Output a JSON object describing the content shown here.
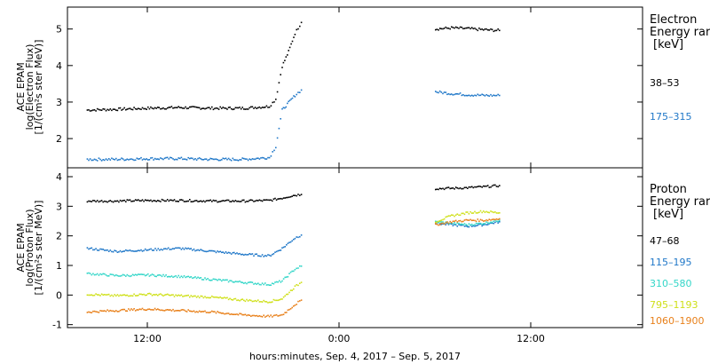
{
  "chart_data": [
    {
      "type": "scatter",
      "instrument": "ACE EPAM",
      "ylabel": "log(Electron Flux)",
      "yunits": "[1/(cm²s ster MeV)]",
      "ylim": [
        1.2,
        5.6
      ],
      "yticks": [
        2,
        3,
        4,
        5
      ],
      "legend_title": [
        "Electron",
        "Energy rar",
        "[keV]"
      ],
      "series": [
        {
          "name": "38–53",
          "color": "#000000",
          "segments": [
            {
              "x": [
                8.2,
                10,
                12,
                14,
                16,
                18,
                19.6,
                20.0,
                20.4,
                20.8,
                21.2,
                21.6
              ],
              "y": [
                2.8,
                2.82,
                2.85,
                2.87,
                2.85,
                2.85,
                2.9,
                3.1,
                4.0,
                4.4,
                4.9,
                5.2
              ]
            },
            {
              "x": [
                30.0,
                31,
                32,
                33,
                34
              ],
              "y": [
                5.02,
                5.05,
                5.03,
                5.0,
                4.98
              ]
            }
          ]
        },
        {
          "name": "175–315",
          "color": "#1f77c8",
          "segments": [
            {
              "x": [
                8.2,
                10,
                12,
                14,
                16,
                18,
                19.6,
                20.0,
                20.4,
                20.8,
                21.2,
                21.6
              ],
              "y": [
                1.45,
                1.45,
                1.47,
                1.47,
                1.45,
                1.45,
                1.5,
                1.8,
                2.8,
                3.0,
                3.2,
                3.35
              ]
            },
            {
              "x": [
                30.0,
                31,
                32,
                33,
                34
              ],
              "y": [
                3.3,
                3.25,
                3.22,
                3.2,
                3.2
              ]
            }
          ]
        }
      ]
    },
    {
      "type": "scatter",
      "instrument": "ACE EPAM",
      "ylabel": "log(Proton Flux)",
      "yunits": "[1/(cm²s ster MeV)]",
      "ylim": [
        -1.1,
        4.3
      ],
      "yticks": [
        -1,
        0,
        1,
        2,
        3,
        4
      ],
      "legend_title": [
        "Proton",
        "Energy rar",
        "[keV]"
      ],
      "x_axis": {
        "xlim": [
          7,
          43
        ],
        "xticks": [
          12,
          24,
          36
        ],
        "xticklabels": [
          "12:00",
          "0:00",
          "12:00"
        ],
        "xlabel": "hours:minutes, Sep.  4, 2017 – Sep.  5, 2017"
      },
      "series": [
        {
          "name": "47–68",
          "color": "#000000",
          "segments": [
            {
              "x": [
                8.2,
                10,
                12,
                14,
                16,
                18,
                19.6,
                20.4,
                21.2,
                21.6
              ],
              "y": [
                3.2,
                3.2,
                3.22,
                3.22,
                3.2,
                3.2,
                3.22,
                3.3,
                3.4,
                3.42
              ]
            },
            {
              "x": [
                30.0,
                31,
                32,
                33,
                34
              ],
              "y": [
                3.62,
                3.63,
                3.65,
                3.68,
                3.72
              ]
            }
          ]
        },
        {
          "name": "115–195",
          "color": "#1f77c8",
          "segments": [
            {
              "x": [
                8.2,
                10,
                12,
                13,
                14,
                16,
                18,
                19.6,
                20.4,
                21.2,
                21.6
              ],
              "y": [
                1.6,
                1.5,
                1.55,
                1.58,
                1.6,
                1.5,
                1.4,
                1.35,
                1.6,
                1.95,
                2.05
              ]
            },
            {
              "x": [
                30.0,
                31,
                32,
                33,
                34
              ],
              "y": [
                2.45,
                2.4,
                2.35,
                2.4,
                2.5
              ]
            }
          ]
        },
        {
          "name": "310–580",
          "color": "#33d6c8",
          "segments": [
            {
              "x": [
                8.2,
                10,
                12,
                14,
                16,
                18,
                19.6,
                20.4,
                21.2,
                21.6
              ],
              "y": [
                0.75,
                0.68,
                0.7,
                0.65,
                0.55,
                0.45,
                0.38,
                0.5,
                0.9,
                1.0
              ]
            },
            {
              "x": [
                30.0,
                31,
                32,
                33,
                34
              ],
              "y": [
                2.5,
                2.45,
                2.4,
                2.45,
                2.55
              ]
            }
          ]
        },
        {
          "name": "795–1193",
          "color": "#cfe01a",
          "segments": [
            {
              "x": [
                8.2,
                10,
                12,
                14,
                16,
                18,
                19.6,
                20.4,
                21.2,
                21.6
              ],
              "y": [
                0.05,
                0.0,
                0.05,
                0.0,
                -0.05,
                -0.15,
                -0.2,
                -0.1,
                0.3,
                0.45
              ]
            },
            {
              "x": [
                30.0,
                31,
                32,
                33,
                34
              ],
              "y": [
                2.5,
                2.7,
                2.8,
                2.85,
                2.8
              ]
            }
          ]
        },
        {
          "name": "1060–1900",
          "color": "#e8801a",
          "segments": [
            {
              "x": [
                8.2,
                10,
                12,
                14,
                16,
                18,
                19.6,
                20.4,
                21.2,
                21.6
              ],
              "y": [
                -0.55,
                -0.5,
                -0.45,
                -0.5,
                -0.55,
                -0.65,
                -0.7,
                -0.65,
                -0.3,
                -0.15
              ]
            },
            {
              "x": [
                30.0,
                31,
                32,
                33,
                34
              ],
              "y": [
                2.4,
                2.5,
                2.55,
                2.55,
                2.6
              ]
            }
          ]
        }
      ]
    }
  ]
}
